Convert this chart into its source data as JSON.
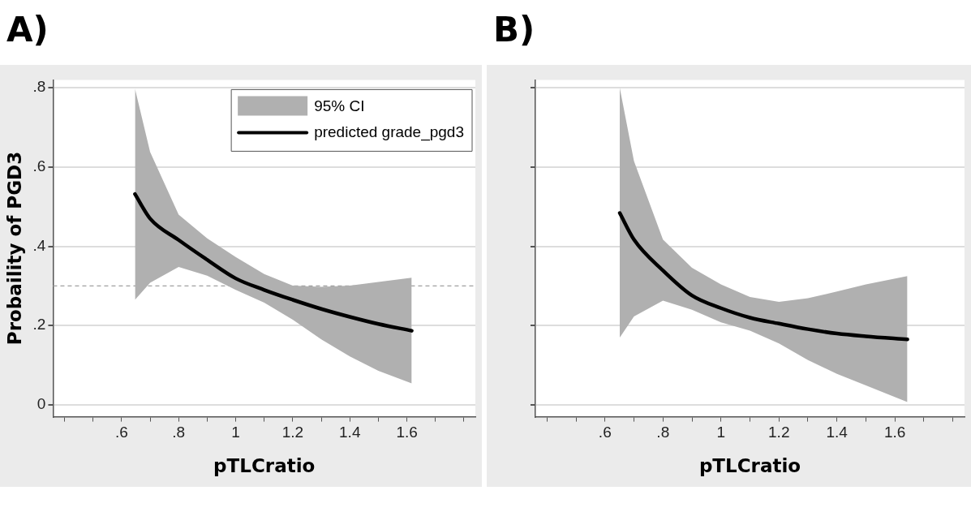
{
  "chart_data": [
    {
      "type": "line",
      "title": "A)",
      "xlabel": "pTLCratio",
      "ylabel": "Probaility of PGD3",
      "xlim": [
        0.36,
        1.84
      ],
      "ylim": [
        -0.03,
        0.82
      ],
      "xticks": [
        {
          "value": 0.4,
          "label": null
        },
        {
          "value": 0.5,
          "label": null
        },
        {
          "value": 0.6,
          "label": ".6"
        },
        {
          "value": 0.7,
          "label": null
        },
        {
          "value": 0.8,
          "label": ".8"
        },
        {
          "value": 0.9,
          "label": null
        },
        1,
        {
          "value": 1.1,
          "label": null
        },
        1.2,
        {
          "value": 1.3,
          "label": null
        },
        1.4,
        {
          "value": 1.5,
          "label": null
        },
        1.6,
        {
          "value": 1.7,
          "label": null
        },
        {
          "value": 1.8,
          "label": null
        }
      ],
      "yticks": [
        0,
        {
          "value": 0.2,
          "label": ".2"
        },
        {
          "value": 0.4,
          "label": ".4"
        },
        {
          "value": 0.6,
          "label": ".6"
        },
        {
          "value": 0.8,
          "label": ".8"
        }
      ],
      "grid": "y",
      "legend": "top right",
      "ref_lines": [
        {
          "axis": "y",
          "value": 0.3,
          "color": "#a0a0a0",
          "line_style": "dashed"
        }
      ],
      "series": [
        {
          "name": "95% CI",
          "type": "area",
          "color": "#b0b0b0",
          "x": [
            0.647,
            0.7,
            0.8,
            0.9,
            1.0,
            1.1,
            1.2,
            1.3,
            1.4,
            1.5,
            1.617
          ],
          "values": [
            null,
            null,
            null,
            null,
            null,
            null,
            null,
            null,
            null,
            null,
            null
          ],
          "lower": [
            0.265,
            0.308,
            0.348,
            0.326,
            0.29,
            0.258,
            0.215,
            0.165,
            0.122,
            0.086,
            0.054
          ],
          "upper": [
            0.798,
            0.638,
            0.48,
            0.42,
            0.373,
            0.33,
            0.301,
            0.298,
            0.301,
            0.31,
            0.321
          ]
        },
        {
          "name": "predicted grade_pgd3",
          "type": "line",
          "color": "#000000",
          "x": [
            0.647,
            0.7,
            0.8,
            0.9,
            1.0,
            1.1,
            1.2,
            1.3,
            1.4,
            1.5,
            1.617
          ],
          "values": [
            0.532,
            0.47,
            0.416,
            0.366,
            0.319,
            0.29,
            0.265,
            0.242,
            0.222,
            0.204,
            0.187
          ]
        }
      ]
    },
    {
      "type": "line",
      "title": "B)",
      "xlabel": "pTLCratio",
      "xlim": [
        0.36,
        1.84
      ],
      "ylim": [
        -0.03,
        0.82
      ],
      "xticks": [
        {
          "value": 0.4,
          "label": null
        },
        {
          "value": 0.5,
          "label": null
        },
        {
          "value": 0.6,
          "label": ".6"
        },
        {
          "value": 0.7,
          "label": null
        },
        {
          "value": 0.8,
          "label": ".8"
        },
        {
          "value": 0.9,
          "label": null
        },
        1,
        {
          "value": 1.1,
          "label": null
        },
        1.2,
        {
          "value": 1.3,
          "label": null
        },
        1.4,
        {
          "value": 1.5,
          "label": null
        },
        1.6,
        {
          "value": 1.7,
          "label": null
        },
        {
          "value": 1.8,
          "label": null
        }
      ],
      "yticks": [
        0,
        0.2,
        0.4,
        0.6,
        0.8
      ],
      "grid": "y",
      "tick_labels": "x",
      "series": [
        {
          "type": "area",
          "color": "#b0b0b0",
          "x": [
            0.651,
            0.7,
            0.8,
            0.9,
            1.0,
            1.1,
            1.2,
            1.3,
            1.4,
            1.5,
            1.643
          ],
          "values": [
            null,
            null,
            null,
            null,
            null,
            null,
            null,
            null,
            null,
            null,
            null
          ],
          "lower": [
            0.17,
            0.223,
            0.263,
            0.24,
            0.208,
            0.187,
            0.155,
            0.113,
            0.078,
            0.049,
            0.007
          ],
          "upper": [
            0.8,
            0.615,
            0.417,
            0.346,
            0.304,
            0.272,
            0.26,
            0.269,
            0.286,
            0.304,
            0.325
          ]
        },
        {
          "type": "line",
          "color": "#000000",
          "x": [
            0.651,
            0.7,
            0.8,
            0.9,
            1.0,
            1.1,
            1.2,
            1.3,
            1.4,
            1.5,
            1.643
          ],
          "values": [
            0.484,
            0.417,
            0.339,
            0.276,
            0.244,
            0.22,
            0.205,
            0.191,
            0.18,
            0.173,
            0.165
          ]
        }
      ]
    }
  ]
}
